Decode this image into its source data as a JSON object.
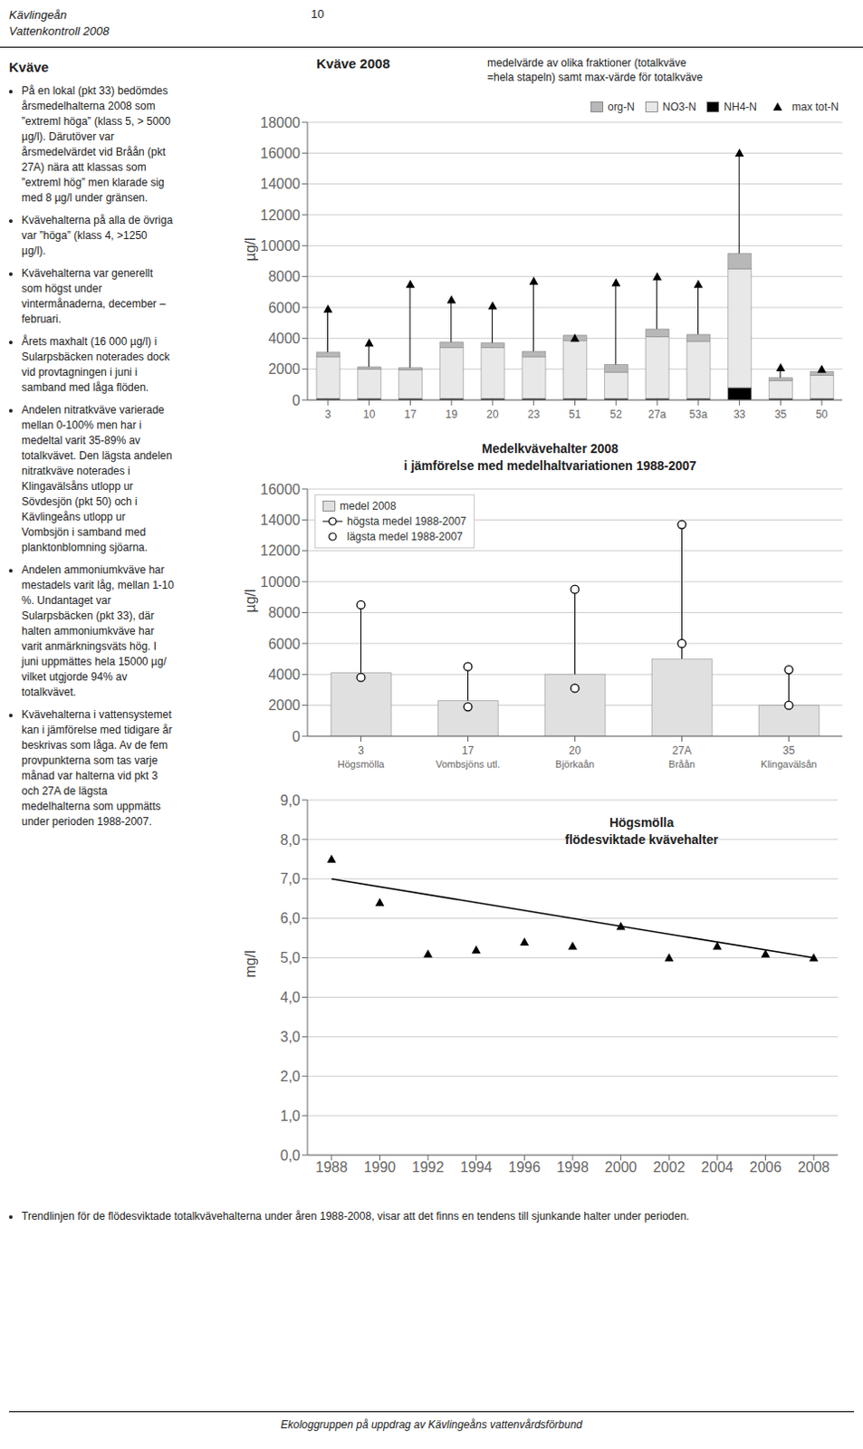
{
  "chart_data": [
    {
      "type": "bar",
      "stacked": true,
      "title": "Kväve 2008",
      "subtitle": [
        "medelvärde av olika fraktioner (totalkväve",
        "=hela stapeln) samt max-värde för totalkväve"
      ],
      "ylabel": "µg/l",
      "categories": [
        "3",
        "10",
        "17",
        "19",
        "20",
        "23",
        "51",
        "52",
        "27a",
        "53a",
        "33",
        "35",
        "50"
      ],
      "series": [
        {
          "name": "org-N",
          "color": "#b8b8b8",
          "values": [
            300,
            150,
            150,
            350,
            300,
            350,
            350,
            500,
            500,
            450,
            1000,
            200,
            250
          ]
        },
        {
          "name": "NO3-N",
          "color": "#e8e8e8",
          "values": [
            2700,
            1900,
            1850,
            3300,
            3300,
            2700,
            3750,
            1700,
            4000,
            3700,
            7700,
            1150,
            1500
          ]
        },
        {
          "name": "NH4-N",
          "color": "#000000",
          "values": [
            100,
            100,
            100,
            100,
            100,
            100,
            100,
            100,
            100,
            100,
            800,
            100,
            100
          ]
        },
        {
          "name": "max tot-N",
          "type": "line",
          "line_style": "stem",
          "marker": "triangle",
          "color": "#000000",
          "values": [
            5900,
            3700,
            7500,
            6500,
            6100,
            7700,
            4000,
            7600,
            8000,
            7500,
            16000,
            2100,
            2000
          ]
        }
      ],
      "ylim": [
        0,
        18000
      ],
      "yticks": [
        0,
        2000,
        4000,
        6000,
        8000,
        10000,
        12000,
        14000,
        16000,
        18000
      ],
      "grid": true,
      "legend": "upper right"
    },
    {
      "type": "bar",
      "title": "Medelkvävehalter 2008",
      "subtitle": [
        "i jämförelse med medelhaltvariationen 1988-2007"
      ],
      "ylabel": "µg/l",
      "categories": [
        "3\nHögsmölla",
        "17\nVombsjöns utl.",
        "20\nBjörkaån",
        "27A\nBråån",
        "35\nKlingavälsån"
      ],
      "series": [
        {
          "name": "medel 2008",
          "color": "#e0e0e0",
          "values": [
            4100,
            2300,
            4000,
            5000,
            2000
          ]
        },
        {
          "name": "högsta medel 1988-2007",
          "type": "line",
          "line_style": "stem",
          "marker": "circle",
          "color": "#000000",
          "values": [
            8500,
            4500,
            9500,
            13700,
            4300
          ]
        },
        {
          "name": "lägsta medel 1988-2007",
          "type": "line",
          "line_style": "none",
          "marker": "circle",
          "color": "#000000",
          "values": [
            3800,
            1900,
            3100,
            6000,
            2000
          ]
        }
      ],
      "ylim": [
        0,
        16000
      ],
      "yticks": [
        0,
        2000,
        4000,
        6000,
        8000,
        10000,
        12000,
        14000,
        16000
      ],
      "grid": true,
      "legend": "upper left"
    },
    {
      "type": "scatter",
      "title": "Högsmölla",
      "subtitle": [
        "flödesviktade kvävehalter"
      ],
      "ylabel": "mg/l",
      "x": [
        1988,
        1990,
        1992,
        1994,
        1996,
        1998,
        2000,
        2002,
        2004,
        2006,
        2008
      ],
      "series": [
        {
          "type": "scatter",
          "marker": "triangle",
          "color": "#000000",
          "values": [
            7.5,
            6.4,
            5.1,
            5.2,
            5.4,
            5.3,
            5.8,
            5.0,
            5.3,
            5.1,
            5.0
          ]
        },
        {
          "type": "line",
          "line_style": "solid",
          "color": "#000000",
          "x": [
            1988,
            2008
          ],
          "values": [
            7.0,
            5.0
          ]
        }
      ],
      "xlim": [
        1987,
        2009
      ],
      "xticks": [
        1988,
        1990,
        1992,
        1994,
        1996,
        1998,
        2000,
        2002,
        2004,
        2006,
        2008
      ],
      "ylim": [
        0.0,
        9.0
      ],
      "yticks": [
        {
          "value": 0.0,
          "label": "0,0"
        },
        {
          "value": 1.0,
          "label": "1,0"
        },
        {
          "value": 2.0,
          "label": "2,0"
        },
        {
          "value": 3.0,
          "label": "3,0"
        },
        {
          "value": 4.0,
          "label": "4,0"
        },
        {
          "value": 5.0,
          "label": "5,0"
        },
        {
          "value": 6.0,
          "label": "6,0"
        },
        {
          "value": 7.0,
          "label": "7,0"
        },
        {
          "value": 8.0,
          "label": "8,0"
        },
        {
          "value": 9.0,
          "label": "9,0"
        }
      ],
      "grid": true
    }
  ],
  "annotations": [
    "Kävlingeån",
    "Vattenkontroll 2008",
    "10",
    "Kväve",
    "På en lokal (pkt 33) bedömdes\nårsmedel­halterna 2008 som\n”extreml höga” (klass 5, > 5000\nµg/l). Därutöver var\nårsmedelvärdet vid Bråån (pkt\n27A) nära att klassas som\n”extreml hög” men klarade sig\nmed 8 µg/l under gränsen.",
    "Kvävehalterna på alla de övriga\nvar ”höga” (klass 4, >1250\nµg/l).",
    "Kvävehalterna var generellt\nsom högst under\nvintermånaderna, december –\nfebruari.",
    "Årets maxhalt (16 000 µg/l) i\nSularpsbäcken noterades dock\nvid provtagningen i juni i\nsamband med låga flöden.",
    "Andelen nitratkväve varierade\nmellan 0-100% men har i\nmedeltal varit 35-89% av\ntotalkvävet. Den lägsta andelen\nnitratkväve noterades i\nKlingavälsåns utlopp ur\nSövdesjön (pkt 50) och i\nKävlingeåns utlopp ur\nVombsjön i samband med\nplanktonblomning sjöarna.",
    "Andelen ammoniumkväve har\nmestadels varit låg, mellan 1-10\n%. Undantaget var\nSularpsbäcken (pkt 33), där\nhalten ammoniumkväve har\nvarit anmärkningsväts hög. I\njuni uppmättes hela 15000 µg/\nvilket utgjorde 94% av\ntotalkvävet.",
    "Kvävehalterna i vattensystemet\nkan i jämförelse med tidigare år\nbeskrivas som låga. Av de fem\nprovpunkterna som tas varje\nmånad var halterna vid pkt 3\noch 27A de lägsta\nmedelhalterna som uppmätts\nunder perioden 1988-2007.",
    "Trendlinjen för de flödesviktade totalkvävehalterna under åren 1988-2008, visar att det finns en tendens till sjunkande halter under perioden.",
    "Ekologgruppen på uppdrag av Kävlingeåns vattenvårdsförbund"
  ]
}
